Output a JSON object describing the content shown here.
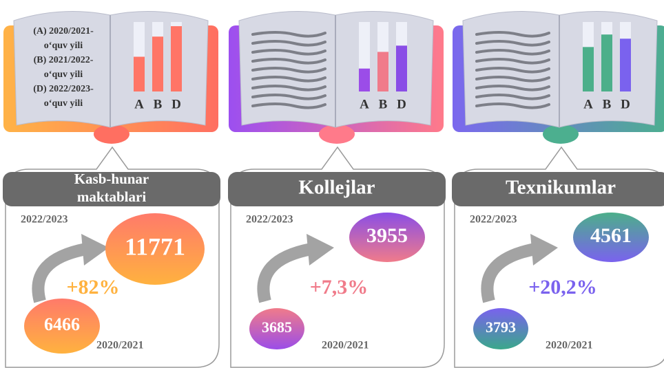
{
  "panels": [
    {
      "title": [
        "Kasb-hunar",
        "maktablari"
      ],
      "legend": [
        "(A) 2020/2021-",
        "o‘quv yili",
        "(B) 2021/2022-",
        "o‘quv yili",
        "(D) 2022/2023-",
        "o‘quv yili"
      ],
      "mini_chart": {
        "type": "bar",
        "categories": [
          "A",
          "B",
          "D"
        ],
        "values": [
          50,
          79,
          94
        ],
        "ylim": [
          0,
          100
        ],
        "colors": [
          "#ff7566",
          "#ff7566",
          "#ff7566"
        ]
      },
      "latest": {
        "label": "2022/2023",
        "value": 11771
      },
      "change": "+82%",
      "earliest": {
        "label": "2020/2021",
        "value": 6466
      },
      "colors": {
        "band": [
          "#ffb347",
          "#ff6f61"
        ],
        "big": [
          "#ff7a6a",
          "#ffb23f"
        ],
        "small": [
          "#ff7a6a",
          "#ffb23f"
        ],
        "change": "#ffb23f"
      }
    },
    {
      "title": [
        "Kollejlar"
      ],
      "mini_chart": {
        "type": "bar",
        "categories": [
          "A",
          "B",
          "D"
        ],
        "values": [
          33,
          57,
          66
        ],
        "ylim": [
          0,
          100
        ],
        "colors": [
          "#9b4de8",
          "#f07b8a",
          "#8a4ee6"
        ]
      },
      "latest": {
        "label": "2022/2023",
        "value": 3955
      },
      "change": "+7,3%",
      "earliest": {
        "label": "2020/2021",
        "value": 3685
      },
      "colors": {
        "band": [
          "#9c4ff0",
          "#ff7a8a"
        ],
        "big": [
          "#8a4ee6",
          "#f07b8a"
        ],
        "small": [
          "#f07b8a",
          "#9b4de8"
        ],
        "change": "#f07b8a"
      }
    },
    {
      "title": [
        "Texnikumlar"
      ],
      "mini_chart": {
        "type": "bar",
        "categories": [
          "A",
          "B",
          "D"
        ],
        "values": [
          64,
          82,
          76
        ],
        "ylim": [
          0,
          100
        ],
        "colors": [
          "#4caf8a",
          "#4caf8a",
          "#7a62ee"
        ]
      },
      "latest": {
        "label": "2022/2023",
        "value": 4561
      },
      "change": "+20,2%",
      "earliest": {
        "label": "2020/2021",
        "value": 3793
      },
      "colors": {
        "band": [
          "#7b68ee",
          "#4caf8f"
        ],
        "big": [
          "#4caf8a",
          "#7a62ee"
        ],
        "small": [
          "#7a62ee",
          "#3aa88a"
        ],
        "change": "#7a62ee"
      }
    }
  ]
}
